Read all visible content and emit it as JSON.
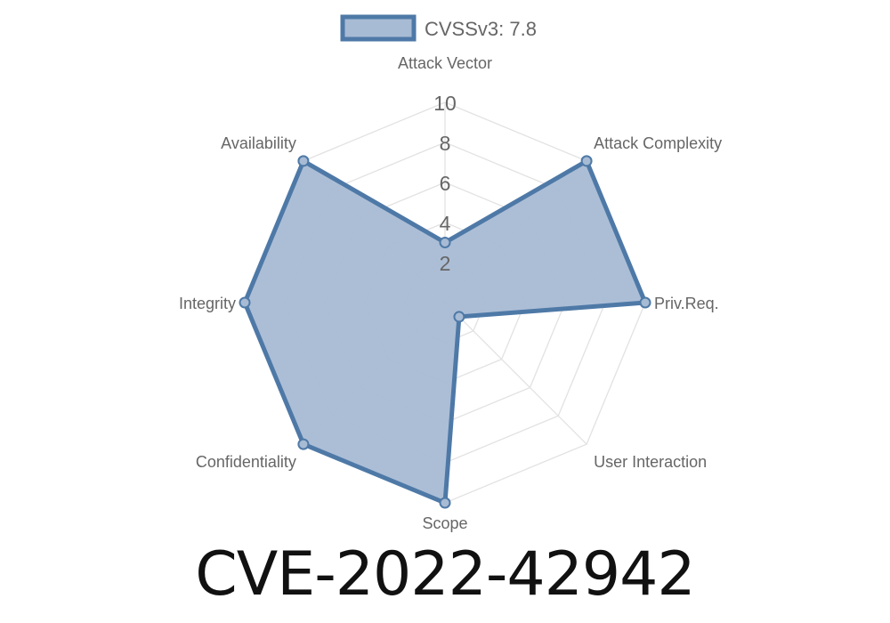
{
  "chart_data": {
    "type": "radar",
    "title": "CVE-2022-42942",
    "categories": [
      "Attack Vector",
      "Attack Complexity",
      "Priv.Req.",
      "User Interaction",
      "Scope",
      "Confidentiality",
      "Integrity",
      "Availability"
    ],
    "series": [
      {
        "name": "CVSSv3: 7.8",
        "values": [
          3.0,
          10,
          10,
          1.0,
          10,
          10,
          10,
          10
        ],
        "color": "#4e79a7",
        "fill": "#a8bbd4"
      }
    ],
    "rlim": [
      0,
      10
    ],
    "ticks": [
      "2",
      "4",
      "6",
      "8",
      "10"
    ],
    "tick_values": [
      2,
      4,
      6,
      8,
      10
    ],
    "grid": true,
    "legend": "top"
  }
}
